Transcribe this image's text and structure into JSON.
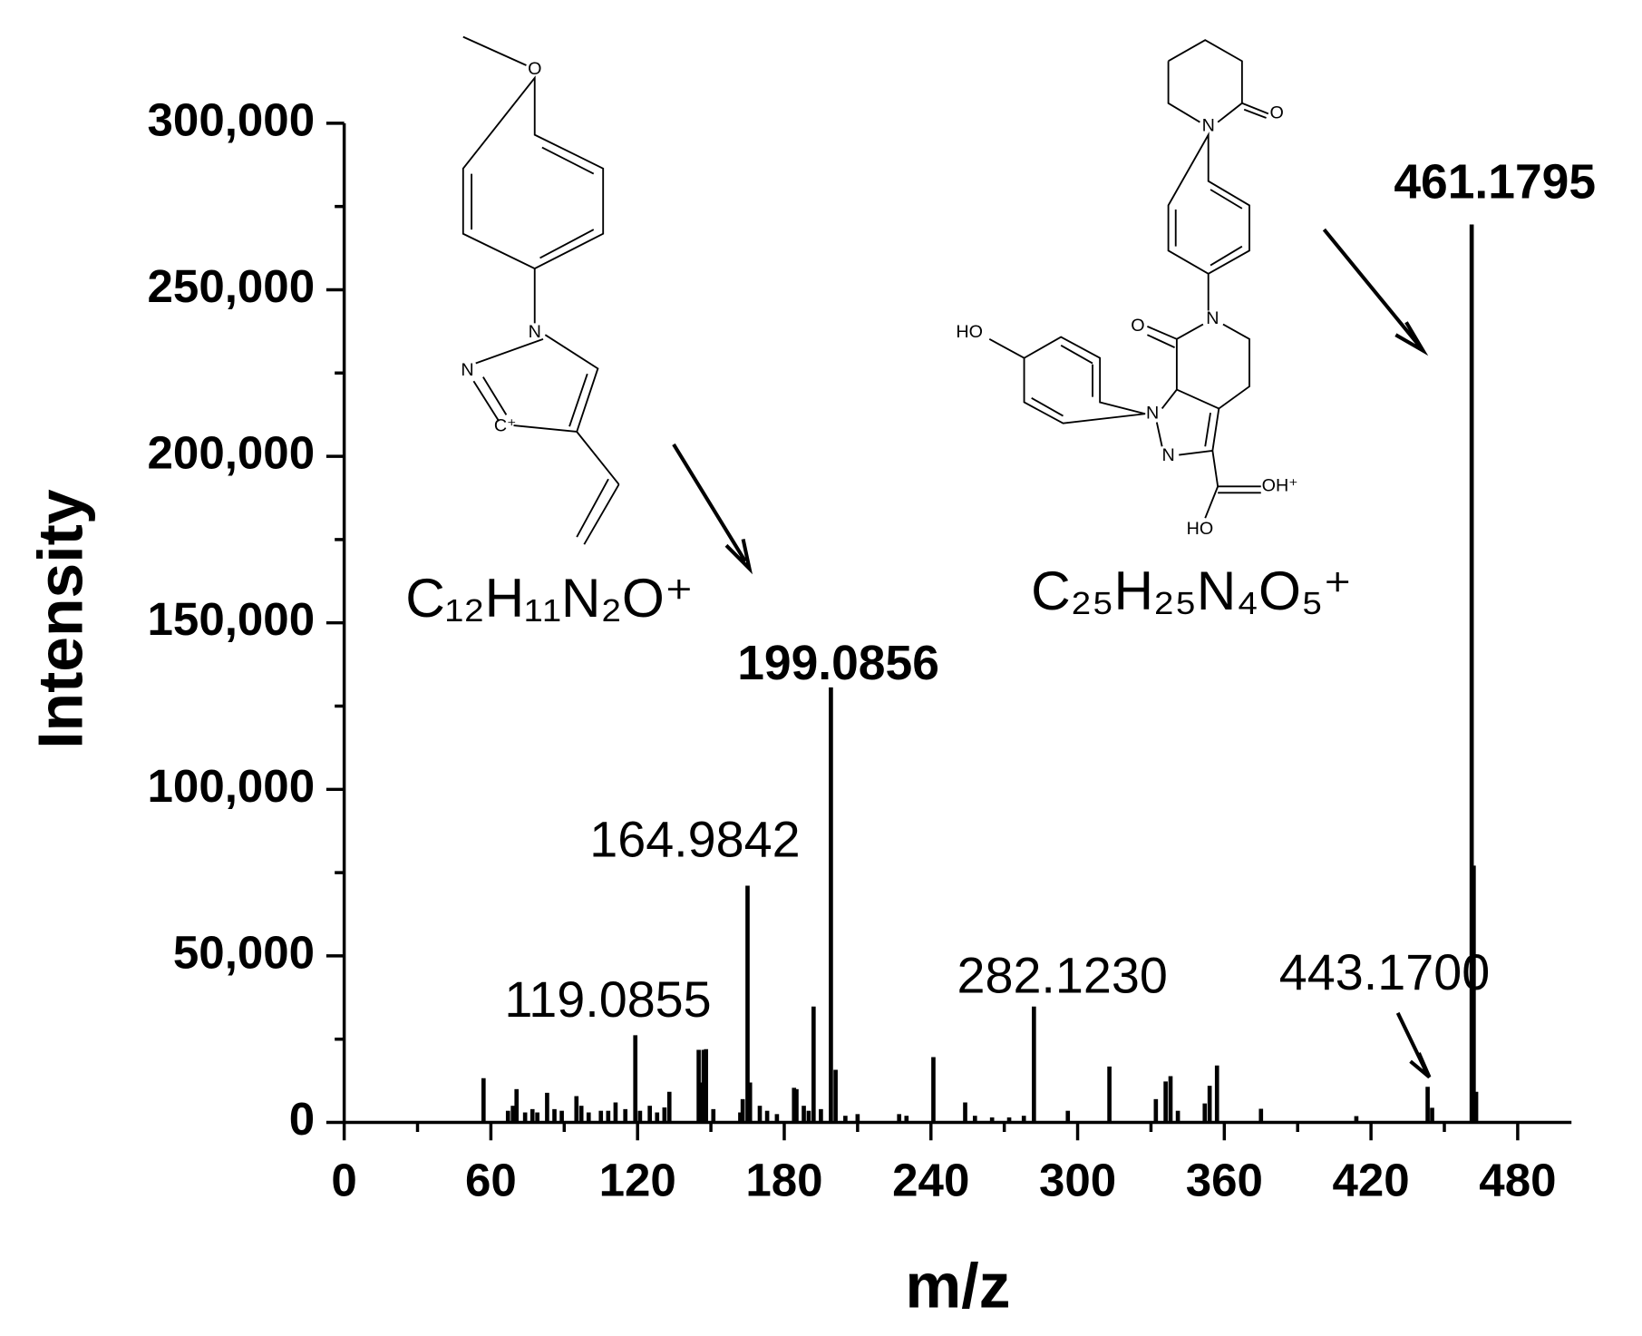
{
  "chart_data": {
    "type": "stem",
    "x_axis_label": "m/z",
    "y_axis_label": "Intensity",
    "color": "#000000",
    "xlim": [
      0,
      502
    ],
    "ylim": [
      0,
      300000
    ],
    "xticks": [
      0,
      60,
      120,
      180,
      240,
      300,
      360,
      420,
      480
    ],
    "xminorticks": [
      30,
      90,
      150,
      210,
      270,
      330,
      390,
      450
    ],
    "yticks": [
      0,
      {
        "value": 50000,
        "label": "50,000"
      },
      {
        "value": 100000,
        "label": "100,000"
      },
      {
        "value": 150000,
        "label": "150,000"
      },
      {
        "value": 200000,
        "label": "200,000"
      },
      {
        "value": 250000,
        "label": "250,000"
      },
      {
        "value": 300000,
        "label": "300,000"
      }
    ],
    "yminorticks": [
      25000,
      75000,
      125000,
      175000,
      225000,
      275000
    ],
    "x": [
      57,
      67,
      69,
      70.5,
      74,
      77,
      79,
      83,
      86,
      89,
      95,
      97,
      100,
      105,
      108,
      111,
      115,
      119.0855,
      121,
      125,
      128,
      131,
      133,
      145,
      146,
      147,
      148,
      151,
      162,
      163,
      164.9842,
      166,
      170,
      173,
      177,
      184,
      185,
      188,
      190,
      192,
      195,
      199.0856,
      201,
      205,
      210,
      227,
      230,
      241,
      254,
      258,
      265,
      272,
      278,
      282.123,
      296,
      313,
      332,
      336,
      338,
      341,
      352,
      354,
      357,
      375,
      414,
      443.17,
      445,
      461.1795,
      462,
      463
    ],
    "values": [
      13300,
      3500,
      5000,
      10000,
      3000,
      4000,
      3000,
      8900,
      4000,
      3500,
      7900,
      5000,
      3000,
      3500,
      3500,
      6000,
      4000,
      26200,
      3500,
      5000,
      3000,
      4500,
      9200,
      21800,
      12000,
      21800,
      22000,
      4000,
      3000,
      7000,
      71100,
      12000,
      5000,
      3500,
      2500,
      10400,
      10000,
      5000,
      3500,
      34800,
      4000,
      130600,
      15800,
      2000,
      2500,
      2500,
      2000,
      19600,
      6000,
      2000,
      1500,
      1500,
      2000,
      34800,
      3500,
      16800,
      7000,
      12300,
      13900,
      3500,
      5700,
      11000,
      17100,
      4100,
      1900,
      10700,
      4400,
      269600,
      77100,
      9200
    ],
    "x_labels": [
      null,
      null,
      null,
      null,
      null,
      null,
      null,
      null,
      null,
      null,
      null,
      null,
      null,
      null,
      null,
      null,
      null,
      "119.0855",
      null,
      null,
      null,
      null,
      null,
      null,
      null,
      null,
      null,
      null,
      null,
      null,
      "164.9842",
      null,
      null,
      null,
      null,
      null,
      null,
      null,
      null,
      null,
      null,
      "199.0856",
      null,
      null,
      null,
      null,
      null,
      null,
      null,
      null,
      null,
      null,
      null,
      "282.1230",
      null,
      null,
      null,
      null,
      null,
      null,
      null,
      null,
      null,
      null,
      null,
      "443.1700",
      null,
      "461.1795",
      null,
      null
    ],
    "structures": [
      {
        "formula": "C₁₂H₁₁N₂O⁺",
        "atoms": [
          "O",
          "N",
          "N",
          "C⁺"
        ]
      },
      {
        "formula": "C₂₅H₂₅N₄O₅⁺",
        "atoms": [
          "N",
          "O",
          "N",
          "O",
          "HO",
          "N",
          "N",
          "OH⁺",
          "HO"
        ]
      }
    ]
  }
}
